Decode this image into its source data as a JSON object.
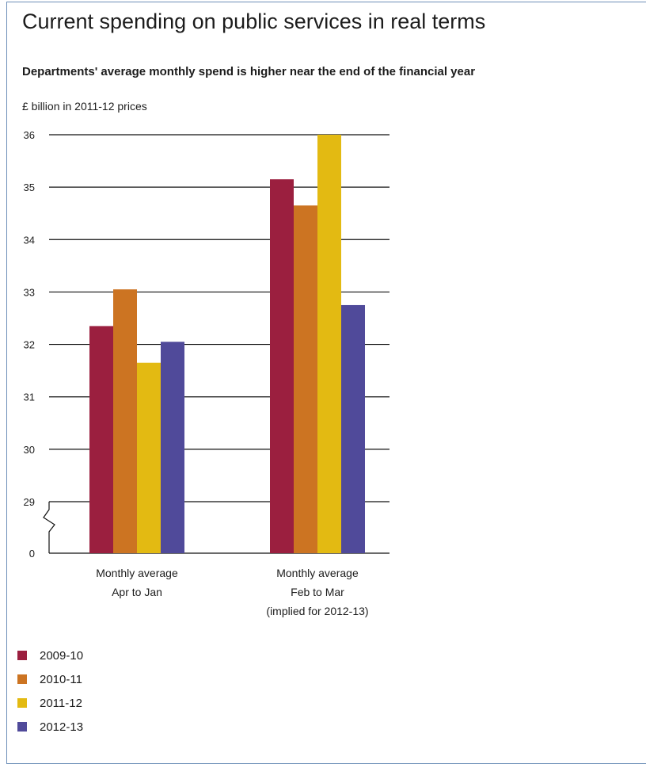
{
  "chart_data": {
    "type": "bar",
    "title": "Current spending on public services in real terms",
    "subtitle": "Departments' average monthly spend is higher near the end of the financial year",
    "ylabel": "£ billion in 2011-12 prices",
    "xlabel": "",
    "categories": [
      [
        "Monthly average",
        "Apr to Jan"
      ],
      [
        "Monthly average",
        "Feb to Mar",
        "(implied for 2012-13)"
      ]
    ],
    "series": [
      {
        "name": "2009-10",
        "color": "#9b1f3f",
        "values": [
          32.35,
          35.15
        ]
      },
      {
        "name": "2010-11",
        "color": "#cc7422",
        "values": [
          33.05,
          34.65
        ]
      },
      {
        "name": "2011-12",
        "color": "#e3ba12",
        "values": [
          31.65,
          36.0
        ]
      },
      {
        "name": "2012-13",
        "color": "#504a9a",
        "values": [
          32.05,
          32.75
        ]
      }
    ],
    "ylim": [
      29,
      36
    ],
    "yticks": [
      0,
      29,
      30,
      31,
      32,
      33,
      34,
      35,
      36
    ],
    "axis_break": "between 0 and 29",
    "grid": true,
    "legend_position": "bottom-left"
  }
}
